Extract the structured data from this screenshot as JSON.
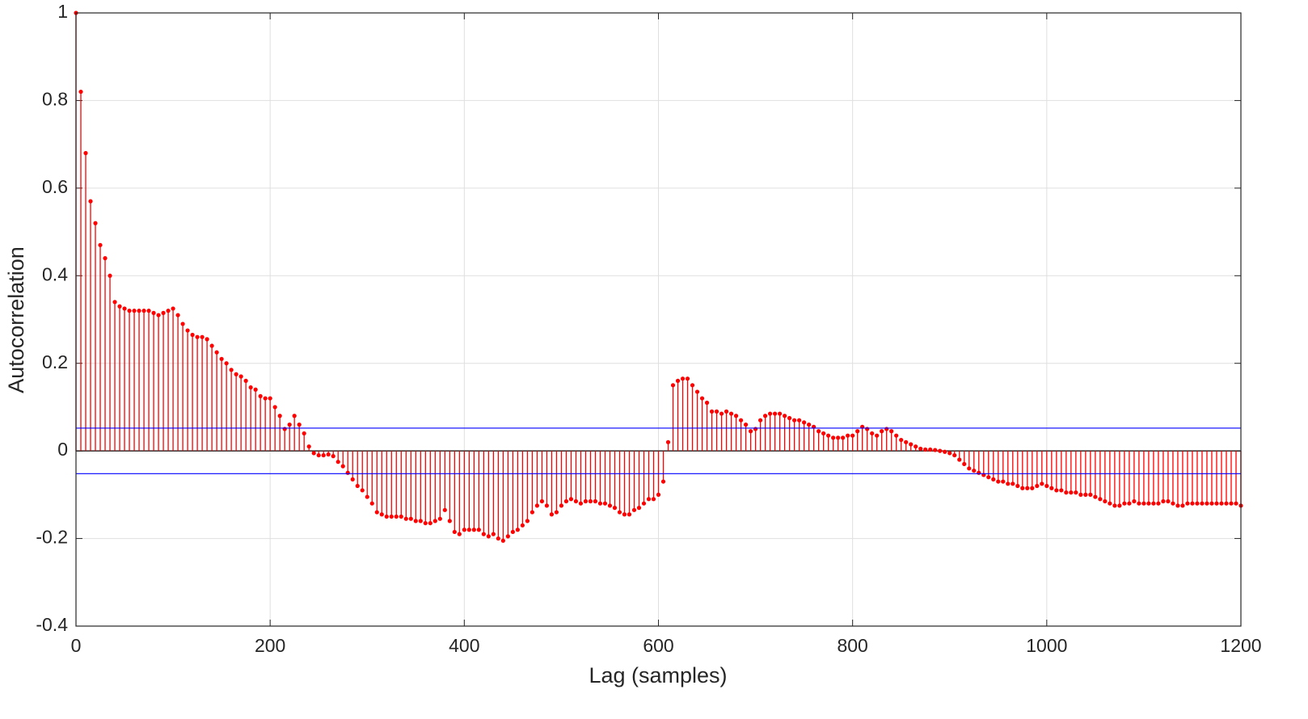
{
  "chart_data": {
    "type": "stem",
    "x_label": "Lag (samples)",
    "y_label": "Autocorrelation",
    "xlim": [
      0,
      1200
    ],
    "ylim": [
      -0.4,
      1
    ],
    "xticks": [
      0,
      200,
      400,
      600,
      800,
      1000,
      1200
    ],
    "yticks": [
      -0.4,
      -0.2,
      0,
      0.2,
      0.4,
      0.6,
      0.8,
      1
    ],
    "grid": true,
    "confidence_bounds": [
      0.052,
      -0.052
    ],
    "bounds_color": "#0000ff",
    "series": [
      {
        "color": "#ff0000",
        "x": [
          0,
          5,
          10,
          15,
          20,
          25,
          30,
          35,
          40,
          45,
          50,
          55,
          60,
          65,
          70,
          75,
          80,
          85,
          90,
          95,
          100,
          105,
          110,
          115,
          120,
          125,
          130,
          135,
          140,
          145,
          150,
          155,
          160,
          165,
          170,
          175,
          180,
          185,
          190,
          195,
          200,
          205,
          210,
          215,
          220,
          225,
          230,
          235,
          240,
          245,
          250,
          255,
          260,
          265,
          270,
          275,
          280,
          285,
          290,
          295,
          300,
          305,
          310,
          315,
          320,
          325,
          330,
          335,
          340,
          345,
          350,
          355,
          360,
          365,
          370,
          375,
          380,
          385,
          390,
          395,
          400,
          405,
          410,
          415,
          420,
          425,
          430,
          435,
          440,
          445,
          450,
          455,
          460,
          465,
          470,
          475,
          480,
          485,
          490,
          495,
          500,
          505,
          510,
          515,
          520,
          525,
          530,
          535,
          540,
          545,
          550,
          555,
          560,
          565,
          570,
          575,
          580,
          585,
          590,
          595,
          600,
          605,
          610,
          615,
          620,
          625,
          630,
          635,
          640,
          645,
          650,
          655,
          660,
          665,
          670,
          675,
          680,
          685,
          690,
          695,
          700,
          705,
          710,
          715,
          720,
          725,
          730,
          735,
          740,
          745,
          750,
          755,
          760,
          765,
          770,
          775,
          780,
          785,
          790,
          795,
          800,
          805,
          810,
          815,
          820,
          825,
          830,
          835,
          840,
          845,
          850,
          855,
          860,
          865,
          870,
          875,
          880,
          885,
          890,
          895,
          900,
          905,
          910,
          915,
          920,
          925,
          930,
          935,
          940,
          945,
          950,
          955,
          960,
          965,
          970,
          975,
          980,
          985,
          990,
          995,
          1000,
          1005,
          1010,
          1015,
          1020,
          1025,
          1030,
          1035,
          1040,
          1045,
          1050,
          1055,
          1060,
          1065,
          1070,
          1075,
          1080,
          1085,
          1090,
          1095,
          1100,
          1105,
          1110,
          1115,
          1120,
          1125,
          1130,
          1135,
          1140,
          1145,
          1150,
          1155,
          1160,
          1165,
          1170,
          1175,
          1180,
          1185,
          1190,
          1195,
          1200
        ],
        "values": [
          1,
          0.82,
          0.68,
          0.57,
          0.52,
          0.47,
          0.44,
          0.4,
          0.34,
          0.33,
          0.325,
          0.32,
          0.32,
          0.32,
          0.32,
          0.32,
          0.315,
          0.31,
          0.315,
          0.32,
          0.325,
          0.31,
          0.29,
          0.275,
          0.265,
          0.26,
          0.26,
          0.255,
          0.24,
          0.225,
          0.21,
          0.2,
          0.185,
          0.175,
          0.17,
          0.16,
          0.145,
          0.14,
          0.125,
          0.12,
          0.12,
          0.1,
          0.08,
          0.05,
          0.06,
          0.08,
          0.06,
          0.04,
          0.01,
          -0.005,
          -0.01,
          -0.01,
          -0.008,
          -0.012,
          -0.025,
          -0.035,
          -0.05,
          -0.065,
          -0.08,
          -0.09,
          -0.105,
          -0.12,
          -0.14,
          -0.145,
          -0.15,
          -0.15,
          -0.15,
          -0.15,
          -0.155,
          -0.155,
          -0.16,
          -0.16,
          -0.165,
          -0.165,
          -0.16,
          -0.155,
          -0.135,
          -0.16,
          -0.185,
          -0.19,
          -0.18,
          -0.18,
          -0.18,
          -0.18,
          -0.19,
          -0.195,
          -0.19,
          -0.2,
          -0.205,
          -0.195,
          -0.185,
          -0.18,
          -0.17,
          -0.16,
          -0.14,
          -0.125,
          -0.115,
          -0.125,
          -0.145,
          -0.14,
          -0.125,
          -0.115,
          -0.11,
          -0.115,
          -0.12,
          -0.115,
          -0.115,
          -0.115,
          -0.12,
          -0.12,
          -0.125,
          -0.13,
          -0.14,
          -0.145,
          -0.145,
          -0.135,
          -0.13,
          -0.12,
          -0.11,
          -0.11,
          -0.1,
          -0.07,
          0.02,
          0.15,
          0.16,
          0.165,
          0.165,
          0.15,
          0.135,
          0.12,
          0.11,
          0.09,
          0.09,
          0.085,
          0.09,
          0.085,
          0.08,
          0.07,
          0.06,
          0.045,
          0.05,
          0.07,
          0.08,
          0.085,
          0.085,
          0.085,
          0.08,
          0.075,
          0.07,
          0.07,
          0.065,
          0.06,
          0.055,
          0.045,
          0.04,
          0.035,
          0.03,
          0.03,
          0.03,
          0.035,
          0.035,
          0.045,
          0.055,
          0.05,
          0.04,
          0.035,
          0.045,
          0.05,
          0.045,
          0.035,
          0.025,
          0.02,
          0.015,
          0.01,
          0.005,
          0.003,
          0.003,
          0.002,
          0,
          -0.002,
          -0.005,
          -0.01,
          -0.02,
          -0.03,
          -0.04,
          -0.045,
          -0.05,
          -0.055,
          -0.06,
          -0.065,
          -0.07,
          -0.07,
          -0.075,
          -0.075,
          -0.08,
          -0.085,
          -0.085,
          -0.085,
          -0.08,
          -0.075,
          -0.08,
          -0.085,
          -0.09,
          -0.09,
          -0.095,
          -0.095,
          -0.095,
          -0.1,
          -0.1,
          -0.1,
          -0.105,
          -0.11,
          -0.115,
          -0.12,
          -0.125,
          -0.125,
          -0.12,
          -0.12,
          -0.115,
          -0.12,
          -0.12,
          -0.12,
          -0.12,
          -0.12,
          -0.115,
          -0.115,
          -0.12,
          -0.125,
          -0.125,
          -0.12,
          -0.12,
          -0.12,
          -0.12,
          -0.12,
          -0.12,
          -0.12,
          -0.12,
          -0.12,
          -0.12,
          -0.12,
          -0.125
        ]
      }
    ]
  }
}
